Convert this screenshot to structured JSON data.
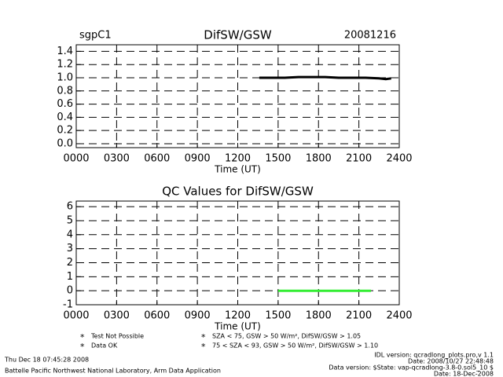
{
  "chart_data": [
    {
      "type": "line",
      "title": "DifSW/GSW",
      "site": "sgpC1",
      "date": "20081216",
      "x_label": "Time (UT)",
      "xlim": [
        0,
        24
      ],
      "xticks": [
        {
          "value": 0,
          "label": "0000"
        },
        {
          "value": 3,
          "label": "0300"
        },
        {
          "value": 6,
          "label": "0600"
        },
        {
          "value": 9,
          "label": "0900"
        },
        {
          "value": 12,
          "label": "1200"
        },
        {
          "value": 15,
          "label": "1500"
        },
        {
          "value": 18,
          "label": "1800"
        },
        {
          "value": 21,
          "label": "2100"
        },
        {
          "value": 24,
          "label": "2400"
        }
      ],
      "ylim": [
        -0.06,
        1.5
      ],
      "yticks": [
        {
          "value": 0,
          "label": "0.0"
        },
        {
          "value": 0.2,
          "label": "0.2"
        },
        {
          "value": 0.4,
          "label": "0.4"
        },
        {
          "value": 0.6,
          "label": "0.6"
        },
        {
          "value": 0.8,
          "label": "0.8"
        },
        {
          "value": 1,
          "label": "1.0"
        },
        {
          "value": 1.2,
          "label": "1.2"
        },
        {
          "value": 1.4,
          "label": "1.4"
        }
      ],
      "grid": true,
      "series": [
        {
          "color": "#000000",
          "x": [
            13.6,
            14.5,
            15.5,
            16.5,
            17.5,
            18.5,
            19.5,
            20.5,
            21.5,
            22.5,
            23.0,
            23.4
          ],
          "values": [
            1.0,
            1.0,
            1.0,
            1.01,
            1.01,
            1.01,
            1.0,
            1.0,
            1.0,
            0.99,
            0.98,
            0.99
          ]
        }
      ]
    },
    {
      "type": "line",
      "title": "QC Values for DifSW/GSW",
      "x_label": "Time (UT)",
      "xlim": [
        0,
        24
      ],
      "xticks": [
        {
          "value": 0,
          "label": "0000"
        },
        {
          "value": 3,
          "label": "0300"
        },
        {
          "value": 6,
          "label": "0600"
        },
        {
          "value": 9,
          "label": "0900"
        },
        {
          "value": 12,
          "label": "1200"
        },
        {
          "value": 15,
          "label": "1500"
        },
        {
          "value": 18,
          "label": "1800"
        },
        {
          "value": 21,
          "label": "2100"
        },
        {
          "value": 24,
          "label": "2400"
        }
      ],
      "ylim": [
        -1,
        6.4
      ],
      "yticks": [
        -1,
        0,
        1,
        2,
        3,
        4,
        5,
        6
      ],
      "grid": true,
      "series": [
        {
          "color": "#33ee33",
          "x": [
            15,
            21.9
          ],
          "values": [
            0,
            0
          ]
        }
      ],
      "legend": [
        {
          "marker": "*",
          "color": "#000000",
          "label": "Test Not Possible"
        },
        {
          "marker": "*",
          "color": "#33ee33",
          "label": "Data OK"
        },
        {
          "marker": "*",
          "color": "#ffa500",
          "label": "SZA < 75, GSW > 50 W/m², DifSW/GSW > 1.05"
        },
        {
          "marker": "*",
          "color": "#ee2222",
          "label": "75 < SZA < 93, GSW > 50 W/m², DifSW/GSW > 1.10"
        }
      ]
    }
  ],
  "footer": {
    "left": [
      "Thu Dec 18 07:45:28 2008",
      "Battelle Pacific Northwest National Laboratory, Arm Data Application"
    ],
    "right": [
      "IDL version: qcradlong_plots.pro,v 1.1",
      "Date: 2008/10/27 22:48:48",
      "Data version: $State: vap-qcradlong-3.8-0.sol5_10 $",
      "Date: 18-Dec-2008"
    ]
  }
}
